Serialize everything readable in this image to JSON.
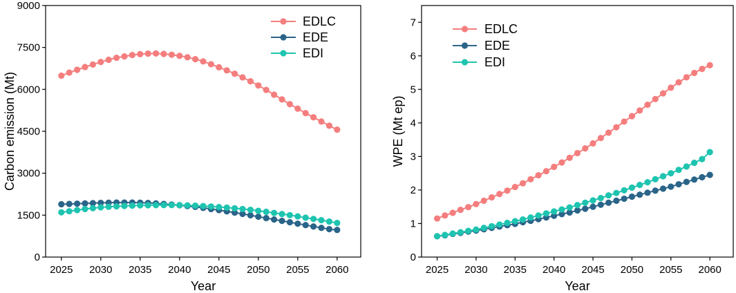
{
  "colors": {
    "EDLC": "#f47e7e",
    "EDE": "#2a6489",
    "EDI": "#1ec4b0"
  },
  "chart_data": [
    {
      "type": "line",
      "xlabel": "Year",
      "ylabel": "Carbon emission (Mt)",
      "xlim": [
        2023,
        2063
      ],
      "ylim": [
        0,
        9000
      ],
      "xticks": [
        2025,
        2030,
        2035,
        2040,
        2045,
        2050,
        2055,
        2060
      ],
      "yticks": [
        0,
        1500,
        3000,
        4500,
        6000,
        7500,
        9000
      ],
      "legend_position": "top-right",
      "x": [
        2025,
        2026,
        2027,
        2028,
        2029,
        2030,
        2031,
        2032,
        2033,
        2034,
        2035,
        2036,
        2037,
        2038,
        2039,
        2040,
        2041,
        2042,
        2043,
        2044,
        2045,
        2046,
        2047,
        2048,
        2049,
        2050,
        2051,
        2052,
        2053,
        2054,
        2055,
        2056,
        2057,
        2058,
        2059,
        2060
      ],
      "series": [
        {
          "name": "EDLC",
          "values": [
            6490,
            6600,
            6700,
            6800,
            6890,
            6980,
            7060,
            7130,
            7180,
            7230,
            7260,
            7280,
            7285,
            7270,
            7240,
            7200,
            7150,
            7080,
            7000,
            6900,
            6790,
            6680,
            6560,
            6430,
            6290,
            6140,
            5980,
            5810,
            5640,
            5470,
            5310,
            5150,
            5000,
            4850,
            4700,
            4560
          ]
        },
        {
          "name": "EDE",
          "values": [
            1890,
            1900,
            1910,
            1920,
            1930,
            1940,
            1945,
            1950,
            1950,
            1950,
            1945,
            1935,
            1920,
            1900,
            1880,
            1855,
            1825,
            1795,
            1760,
            1720,
            1680,
            1635,
            1590,
            1545,
            1495,
            1445,
            1395,
            1345,
            1295,
            1245,
            1195,
            1145,
            1095,
            1045,
            1000,
            970
          ]
        },
        {
          "name": "EDI",
          "values": [
            1600,
            1640,
            1680,
            1720,
            1750,
            1780,
            1800,
            1815,
            1830,
            1840,
            1850,
            1855,
            1858,
            1860,
            1860,
            1857,
            1850,
            1840,
            1825,
            1810,
            1790,
            1770,
            1745,
            1720,
            1690,
            1655,
            1620,
            1580,
            1540,
            1500,
            1455,
            1410,
            1365,
            1320,
            1270,
            1220
          ]
        }
      ]
    },
    {
      "type": "line",
      "xlabel": "Year",
      "ylabel": "WPE (Mt ep)",
      "xlim": [
        2023,
        2063
      ],
      "ylim": [
        0,
        7.5
      ],
      "xticks": [
        2025,
        2030,
        2035,
        2040,
        2045,
        2050,
        2055,
        2060
      ],
      "yticks": [
        0,
        1,
        2,
        3,
        4,
        5,
        6,
        7
      ],
      "legend_position": "top-left",
      "x": [
        2025,
        2026,
        2027,
        2028,
        2029,
        2030,
        2031,
        2032,
        2033,
        2034,
        2035,
        2036,
        2037,
        2038,
        2039,
        2040,
        2041,
        2042,
        2043,
        2044,
        2045,
        2046,
        2047,
        2048,
        2049,
        2050,
        2051,
        2052,
        2053,
        2054,
        2055,
        2056,
        2057,
        2058,
        2059,
        2060
      ],
      "series": [
        {
          "name": "EDLC",
          "values": [
            1.15,
            1.24,
            1.32,
            1.41,
            1.49,
            1.58,
            1.68,
            1.78,
            1.88,
            1.98,
            2.09,
            2.2,
            2.32,
            2.44,
            2.56,
            2.69,
            2.82,
            2.96,
            3.1,
            3.24,
            3.39,
            3.55,
            3.71,
            3.87,
            4.04,
            4.2,
            4.37,
            4.54,
            4.71,
            4.88,
            5.05,
            5.21,
            5.36,
            5.49,
            5.61,
            5.72
          ]
        },
        {
          "name": "EDE",
          "values": [
            0.62,
            0.65,
            0.69,
            0.72,
            0.76,
            0.79,
            0.83,
            0.87,
            0.91,
            0.95,
            0.99,
            1.04,
            1.08,
            1.13,
            1.18,
            1.23,
            1.28,
            1.33,
            1.39,
            1.44,
            1.5,
            1.56,
            1.62,
            1.68,
            1.74,
            1.8,
            1.86,
            1.92,
            1.98,
            2.04,
            2.1,
            2.17,
            2.24,
            2.31,
            2.38,
            2.45
          ]
        },
        {
          "name": "EDI",
          "values": [
            0.62,
            0.66,
            0.7,
            0.74,
            0.78,
            0.82,
            0.87,
            0.92,
            0.97,
            1.02,
            1.07,
            1.12,
            1.18,
            1.24,
            1.3,
            1.36,
            1.42,
            1.48,
            1.55,
            1.62,
            1.69,
            1.76,
            1.84,
            1.91,
            1.99,
            2.07,
            2.15,
            2.23,
            2.32,
            2.41,
            2.5,
            2.6,
            2.7,
            2.81,
            2.92,
            3.13
          ]
        }
      ]
    }
  ]
}
